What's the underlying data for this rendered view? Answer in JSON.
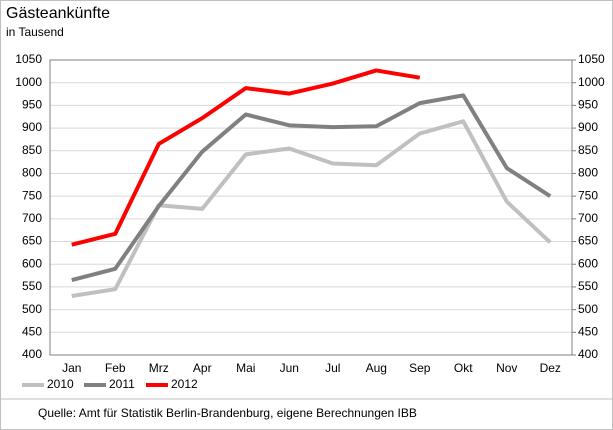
{
  "chart_data": {
    "type": "line",
    "title": "Gästeankünfte",
    "subtitle": "in Tausend",
    "categories": [
      "Jan",
      "Feb",
      "Mrz",
      "Apr",
      "Mai",
      "Jun",
      "Jul",
      "Aug",
      "Sep",
      "Okt",
      "Nov",
      "Dez"
    ],
    "series": [
      {
        "name": "2010",
        "color": "#c0c0c0",
        "values": [
          530,
          545,
          730,
          722,
          842,
          855,
          822,
          818,
          888,
          915,
          738,
          648
        ]
      },
      {
        "name": "2011",
        "color": "#808080",
        "values": [
          565,
          590,
          728,
          848,
          930,
          906,
          902,
          904,
          955,
          972,
          812,
          750
        ]
      },
      {
        "name": "2012",
        "color": "#ff0000",
        "values": [
          643,
          667,
          865,
          922,
          988,
          976,
          998,
          1027,
          1011,
          null,
          null,
          null
        ]
      }
    ],
    "ylim": [
      400,
      1050
    ],
    "yticks": [
      400,
      450,
      500,
      550,
      600,
      650,
      700,
      750,
      800,
      850,
      900,
      950,
      1000,
      1050
    ],
    "y2lim": [
      400,
      1050
    ],
    "y2ticks": [
      400,
      450,
      500,
      550,
      600,
      650,
      700,
      750,
      800,
      850,
      900,
      950,
      1000,
      1050
    ],
    "grid": true,
    "legend": "bottom-left",
    "source": "Quelle: Amt für Statistik Berlin-Brandenburg,  eigene Berechnungen IBB"
  }
}
